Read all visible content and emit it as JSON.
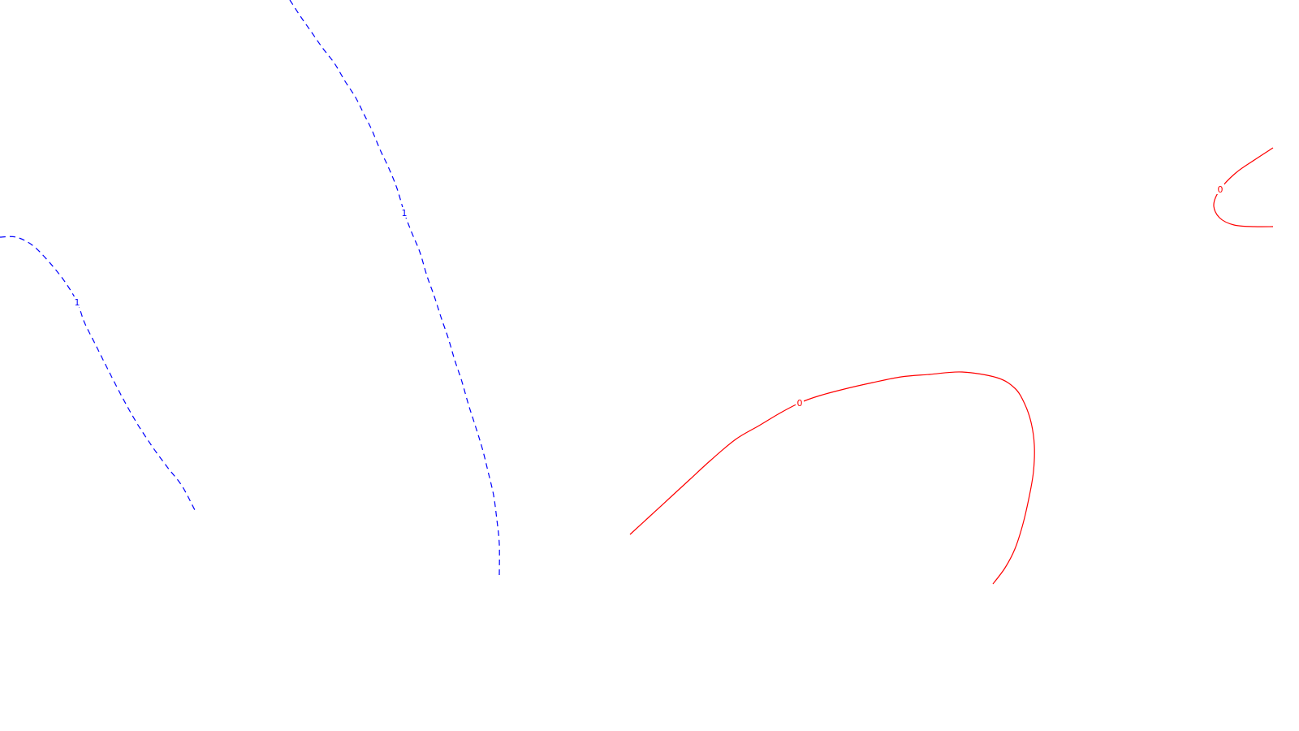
{
  "chart_data": {
    "type": "contour",
    "grid": false,
    "series": [
      {
        "id": "blue-dashed-contour",
        "level": "1",
        "color": "#0000ff",
        "style": "dashed",
        "segments": [
          {
            "label_index": 5,
            "points": [
              [
                0,
                292
              ],
              [
                20,
                292
              ],
              [
                40,
                302
              ],
              [
                60,
                322
              ],
              [
                80,
                347
              ],
              [
                95,
                372
              ],
              [
                104,
                397
              ],
              [
                118,
                425
              ],
              [
                133,
                455
              ],
              [
                150,
                488
              ],
              [
                168,
                520
              ],
              [
                187,
                549
              ],
              [
                206,
                575
              ],
              [
                224,
                598
              ],
              [
                240,
                628
              ]
            ]
          },
          {
            "label_index": 12,
            "points": [
              [
                357,
                0
              ],
              [
                370,
                20
              ],
              [
                384,
                40
              ],
              [
                398,
                60
              ],
              [
                412,
                78
              ],
              [
                425,
                100
              ],
              [
                438,
                120
              ],
              [
                448,
                140
              ],
              [
                458,
                160
              ],
              [
                468,
                184
              ],
              [
                478,
                205
              ],
              [
                489,
                232
              ],
              [
                498,
                262
              ],
              [
                507,
                286
              ],
              [
                517,
                310
              ],
              [
                526,
                340
              ],
              [
                535,
                365
              ],
              [
                543,
                390
              ],
              [
                552,
                416
              ],
              [
                560,
                443
              ],
              [
                569,
                470
              ],
              [
                577,
                498
              ],
              [
                586,
                526
              ],
              [
                594,
                552
              ],
              [
                601,
                580
              ],
              [
                608,
                610
              ],
              [
                612,
                640
              ],
              [
                615,
                670
              ],
              [
                615,
                710
              ]
            ]
          }
        ]
      },
      {
        "id": "red-solid-contour",
        "level": "0",
        "color": "#ff0000",
        "style": "solid",
        "segments": [
          {
            "label_index": 8,
            "points": [
              [
                776,
                658
              ],
              [
                800,
                636
              ],
              [
                825,
                613
              ],
              [
                850,
                590
              ],
              [
                875,
                567
              ],
              [
                906,
                541
              ],
              [
                935,
                524
              ],
              [
                960,
                509
              ],
              [
                985,
                496
              ],
              [
                1010,
                487
              ],
              [
                1040,
                479
              ],
              [
                1075,
                471
              ],
              [
                1110,
                464
              ],
              [
                1145,
                461
              ],
              [
                1185,
                458
              ],
              [
                1228,
                465
              ],
              [
                1250,
                478
              ],
              [
                1262,
                497
              ],
              [
                1270,
                520
              ],
              [
                1274,
                548
              ],
              [
                1273,
                580
              ],
              [
                1268,
                610
              ],
              [
                1260,
                645
              ],
              [
                1250,
                676
              ],
              [
                1238,
                699
              ],
              [
                1223,
                719
              ]
            ]
          },
          {
            "label_index": 3,
            "points": [
              [
                1568,
                182
              ],
              [
                1545,
                197
              ],
              [
                1522,
                213
              ],
              [
                1503,
                233
              ],
              [
                1495,
                252
              ],
              [
                1502,
                268
              ],
              [
                1520,
                277
              ],
              [
                1545,
                279
              ],
              [
                1568,
                279
              ]
            ]
          }
        ]
      }
    ]
  }
}
